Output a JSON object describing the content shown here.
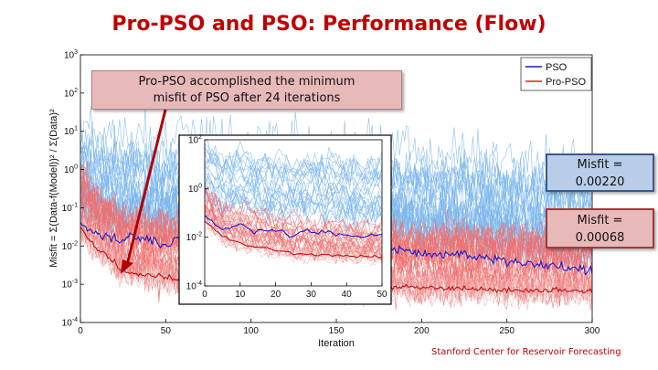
{
  "slide_title": "Pro-PSO and PSO: Performance (Flow)",
  "callout_top": [
    "Pro-PSO accomplished the minimum",
    "misfit of PSO after 24 iterations"
  ],
  "callout_pso": [
    "Misfit =",
    "0.00220"
  ],
  "callout_propso": [
    "Misfit =",
    "0.00068"
  ],
  "footer": "Stanford Center for Reservoir Forecasting",
  "colors": {
    "title": "#c00000",
    "pso": "#1a1acc",
    "propso": "#e02020",
    "pso_cloud": "#7ab6ec",
    "propso_cloud": "#f07070"
  },
  "chart_data": [
    {
      "type": "line",
      "xlabel": "Iteration",
      "ylabel": "Misfit = Σ(Data-f(Model))² / Σ(Data)²",
      "xlim": [
        0,
        300
      ],
      "ylim": [
        0.0001,
        1000
      ],
      "yscale": "log",
      "x_ticks": [
        "0",
        "50",
        "100",
        "150",
        "200",
        "250",
        "300"
      ],
      "y_ticks": [
        "10-4",
        "10-3",
        "10-2",
        "10-1",
        "100",
        "101",
        "102",
        "103"
      ],
      "legend": {
        "position": "top-right",
        "entries": [
          "PSO",
          "Pro-PSO"
        ]
      },
      "series": [
        {
          "name": "PSO",
          "x": [
            0,
            10,
            20,
            24,
            30,
            40,
            50,
            60,
            80,
            100,
            125,
            150,
            175,
            200,
            225,
            250,
            275,
            300
          ],
          "values": [
            0.04,
            0.02,
            0.015,
            0.012,
            0.02,
            0.015,
            0.01,
            0.02,
            0.012,
            0.01,
            0.015,
            0.008,
            0.01,
            0.006,
            0.006,
            0.004,
            0.003,
            0.0022
          ]
        },
        {
          "name": "Pro-PSO",
          "x": [
            0,
            10,
            20,
            24,
            30,
            40,
            50,
            75,
            100,
            125,
            150,
            175,
            200,
            225,
            250,
            275,
            300
          ],
          "values": [
            0.03,
            0.008,
            0.004,
            0.0022,
            0.002,
            0.0018,
            0.0015,
            0.0012,
            0.001,
            0.001,
            0.0009,
            0.0009,
            0.0008,
            0.0008,
            0.0007,
            0.0007,
            0.00068
          ]
        }
      ]
    },
    {
      "type": "line",
      "xlim": [
        0,
        50
      ],
      "ylim": [
        0.0001,
        100
      ],
      "yscale": "log",
      "x_ticks": [
        "0",
        "10",
        "20",
        "30",
        "40",
        "50"
      ],
      "y_ticks": [
        "10-4",
        "10-2",
        "100",
        "102"
      ],
      "series": [
        {
          "name": "PSO",
          "x": [
            0,
            5,
            10,
            15,
            20,
            25,
            30,
            35,
            40,
            45,
            50
          ],
          "values": [
            0.08,
            0.02,
            0.03,
            0.015,
            0.02,
            0.012,
            0.02,
            0.015,
            0.012,
            0.01,
            0.012
          ]
        },
        {
          "name": "Pro-PSO",
          "x": [
            0,
            5,
            10,
            15,
            20,
            24,
            30,
            35,
            40,
            45,
            50
          ],
          "values": [
            0.05,
            0.01,
            0.006,
            0.004,
            0.003,
            0.0022,
            0.002,
            0.0018,
            0.0017,
            0.0016,
            0.0015
          ]
        }
      ]
    }
  ]
}
